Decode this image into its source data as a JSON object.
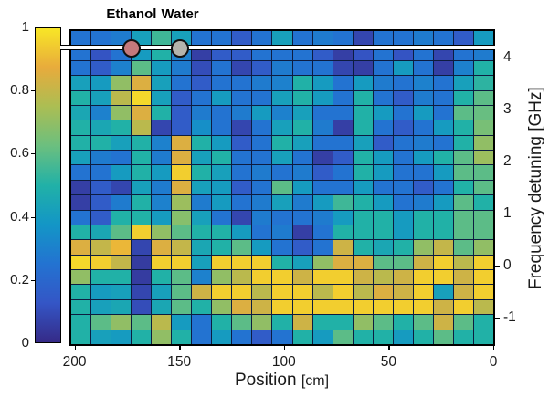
{
  "chart_data": {
    "type": "heatmap",
    "title": "",
    "colormap": "parula",
    "colormap_stops": [
      "#352a87",
      "#3456c6",
      "#2373d1",
      "#1396c6",
      "#21b1a7",
      "#6bbf7f",
      "#abbe53",
      "#e8ab3c",
      "#f8e626"
    ],
    "grid_line_color": "#0d1c40",
    "x_axis": {
      "label_main": "Position",
      "label_unit": "[cm]",
      "ticks": [
        200,
        150,
        100,
        50,
        0
      ],
      "range": [
        202,
        0
      ]
    },
    "y_axis": {
      "label": "Frequency detuning [GHz]",
      "ticks": [
        4,
        3,
        2,
        1,
        0,
        -1
      ],
      "range": [
        4.526,
        -1.509
      ],
      "side": "right"
    },
    "colorbar": {
      "labels": [
        "1",
        "0.8",
        "0.6",
        "0.4",
        "0.2",
        "0"
      ],
      "values": [
        1,
        0.8,
        0.6,
        0.4,
        0.2,
        0
      ],
      "range": [
        0,
        1
      ],
      "position": "left"
    },
    "annotations": {
      "line_frequency_ghz": 4.18,
      "line_color": "#ffffff",
      "samples": [
        {
          "label": "Ethanol",
          "marker_color": "#c4797c",
          "position_cm": 172.8
        },
        {
          "label": "Water",
          "marker_color": "#b4b4ac",
          "position_cm": 149.6
        }
      ]
    },
    "matrix": [
      [
        0.25,
        0.25,
        0.28,
        0.42,
        0.55,
        0.42,
        0.25,
        0.25,
        0.15,
        0.25,
        0.42,
        0.25,
        0.28,
        0.25,
        0.08,
        0.25,
        0.25,
        0.28,
        0.25,
        0.15,
        0.4
      ],
      [
        0.25,
        0.12,
        0.25,
        0.4,
        0.5,
        0.3,
        0.06,
        0.15,
        0.15,
        0.25,
        0.25,
        0.25,
        0.15,
        0.06,
        0.12,
        0.25,
        0.12,
        0.25,
        0.08,
        0.25,
        0.28
      ],
      [
        0.25,
        0.15,
        0.3,
        0.6,
        0.4,
        0.28,
        0.1,
        0.25,
        0.08,
        0.15,
        0.28,
        0.25,
        0.25,
        0.08,
        0.06,
        0.25,
        0.4,
        0.25,
        0.06,
        0.3,
        0.5
      ],
      [
        0.42,
        0.4,
        0.7,
        0.85,
        0.42,
        0.25,
        0.15,
        0.25,
        0.25,
        0.28,
        0.3,
        0.5,
        0.4,
        0.25,
        0.4,
        0.28,
        0.25,
        0.3,
        0.25,
        0.42,
        0.52
      ],
      [
        0.5,
        0.42,
        0.78,
        0.97,
        0.42,
        0.15,
        0.25,
        0.4,
        0.25,
        0.25,
        0.42,
        0.5,
        0.4,
        0.25,
        0.5,
        0.25,
        0.15,
        0.28,
        0.25,
        0.5,
        0.6
      ],
      [
        0.45,
        0.3,
        0.7,
        0.85,
        0.5,
        0.15,
        0.28,
        0.25,
        0.28,
        0.4,
        0.3,
        0.42,
        0.25,
        0.25,
        0.5,
        0.4,
        0.25,
        0.4,
        0.25,
        0.6,
        0.62
      ],
      [
        0.5,
        0.45,
        0.5,
        0.78,
        0.08,
        0.15,
        0.35,
        0.25,
        0.08,
        0.25,
        0.42,
        0.5,
        0.28,
        0.06,
        0.5,
        0.25,
        0.15,
        0.25,
        0.4,
        0.5,
        0.65
      ],
      [
        0.5,
        0.5,
        0.42,
        0.5,
        0.3,
        0.85,
        0.5,
        0.4,
        0.15,
        0.25,
        0.5,
        0.42,
        0.25,
        0.25,
        0.42,
        0.15,
        0.25,
        0.28,
        0.25,
        0.5,
        0.7
      ],
      [
        0.42,
        0.28,
        0.25,
        0.5,
        0.28,
        0.85,
        0.42,
        0.5,
        0.25,
        0.25,
        0.42,
        0.25,
        0.06,
        0.15,
        0.5,
        0.4,
        0.25,
        0.4,
        0.5,
        0.6,
        0.72
      ],
      [
        0.25,
        0.25,
        0.4,
        0.5,
        0.4,
        0.95,
        0.5,
        0.42,
        0.25,
        0.28,
        0.25,
        0.28,
        0.15,
        0.25,
        0.5,
        0.4,
        0.25,
        0.25,
        0.4,
        0.6,
        0.6
      ],
      [
        0.06,
        0.15,
        0.08,
        0.42,
        0.28,
        0.85,
        0.42,
        0.4,
        0.15,
        0.25,
        0.6,
        0.4,
        0.25,
        0.25,
        0.4,
        0.25,
        0.25,
        0.15,
        0.25,
        0.5,
        0.6
      ],
      [
        0.06,
        0.15,
        0.28,
        0.5,
        0.3,
        0.72,
        0.28,
        0.4,
        0.25,
        0.28,
        0.42,
        0.28,
        0.4,
        0.55,
        0.5,
        0.4,
        0.25,
        0.28,
        0.4,
        0.6,
        0.5
      ],
      [
        0.25,
        0.15,
        0.5,
        0.5,
        0.4,
        0.68,
        0.42,
        0.25,
        0.08,
        0.28,
        0.25,
        0.25,
        0.28,
        0.4,
        0.5,
        0.5,
        0.4,
        0.5,
        0.5,
        0.6,
        0.6
      ],
      [
        0.5,
        0.45,
        0.6,
        0.95,
        0.7,
        0.6,
        0.5,
        0.5,
        0.4,
        0.25,
        0.28,
        0.06,
        0.25,
        0.5,
        0.5,
        0.5,
        0.4,
        0.5,
        0.5,
        0.6,
        0.6
      ],
      [
        0.85,
        0.8,
        0.9,
        0.08,
        0.85,
        0.8,
        0.45,
        0.5,
        0.6,
        0.4,
        0.25,
        0.15,
        0.25,
        0.82,
        0.5,
        0.45,
        0.5,
        0.7,
        0.8,
        0.6,
        0.7
      ],
      [
        0.97,
        0.95,
        0.8,
        0.05,
        0.95,
        0.95,
        0.42,
        0.95,
        0.95,
        0.95,
        0.5,
        0.42,
        0.7,
        0.85,
        0.85,
        0.6,
        0.6,
        0.82,
        0.95,
        0.78,
        0.95
      ],
      [
        0.7,
        0.5,
        0.5,
        0.05,
        0.5,
        0.6,
        0.3,
        0.7,
        0.78,
        0.95,
        0.95,
        0.82,
        0.95,
        0.95,
        0.82,
        0.78,
        0.82,
        0.95,
        0.95,
        0.82,
        0.95
      ],
      [
        0.5,
        0.4,
        0.42,
        0.08,
        0.42,
        0.6,
        0.82,
        0.95,
        0.95,
        0.78,
        0.95,
        0.95,
        0.78,
        0.95,
        0.78,
        0.85,
        0.82,
        0.95,
        0.42,
        0.82,
        0.95
      ],
      [
        0.5,
        0.42,
        0.45,
        0.1,
        0.45,
        0.6,
        0.5,
        0.7,
        0.85,
        0.82,
        0.95,
        0.95,
        0.95,
        0.95,
        0.95,
        0.95,
        0.95,
        0.95,
        0.82,
        0.95,
        0.78
      ],
      [
        0.5,
        0.6,
        0.7,
        0.6,
        0.78,
        0.4,
        0.25,
        0.5,
        0.6,
        0.7,
        0.5,
        0.82,
        0.5,
        0.5,
        0.7,
        0.6,
        0.5,
        0.6,
        0.82,
        0.6,
        0.5
      ],
      [
        0.5,
        0.42,
        0.4,
        0.5,
        0.7,
        0.5,
        0.25,
        0.4,
        0.25,
        0.15,
        0.25,
        0.5,
        0.4,
        0.6,
        0.5,
        0.5,
        0.4,
        0.5,
        0.6,
        0.5,
        0.5
      ]
    ]
  }
}
